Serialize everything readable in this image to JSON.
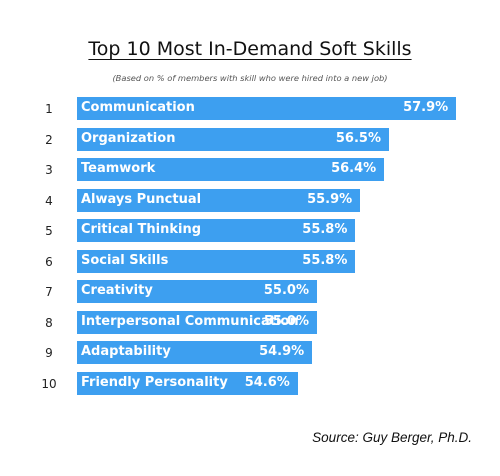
{
  "chart_data": {
    "type": "bar",
    "title": "Top 10 Most In-Demand Soft Skills",
    "subtitle": "(Based on % of members with skill who were hired into a new job)",
    "ranks": [
      "1",
      "2",
      "3",
      "4",
      "5",
      "6",
      "7",
      "8",
      "9",
      "10"
    ],
    "categories": [
      "Communication",
      "Organization",
      "Teamwork",
      "Always Punctual",
      "Critical Thinking",
      "Social Skills",
      "Creativity",
      "Interpersonal Communication",
      "Adaptability",
      "Friendly Personality"
    ],
    "values": [
      57.9,
      56.5,
      56.4,
      55.9,
      55.8,
      55.8,
      55.0,
      55.0,
      54.9,
      54.6
    ],
    "value_labels": [
      "57.9%",
      "56.5%",
      "56.4%",
      "55.9%",
      "55.8%",
      "55.8%",
      "55.0%",
      "55.0%",
      "54.9%",
      "54.6%"
    ],
    "bar_color": "#3d9ff0",
    "source": "Source: Guy Berger, Ph.D."
  }
}
